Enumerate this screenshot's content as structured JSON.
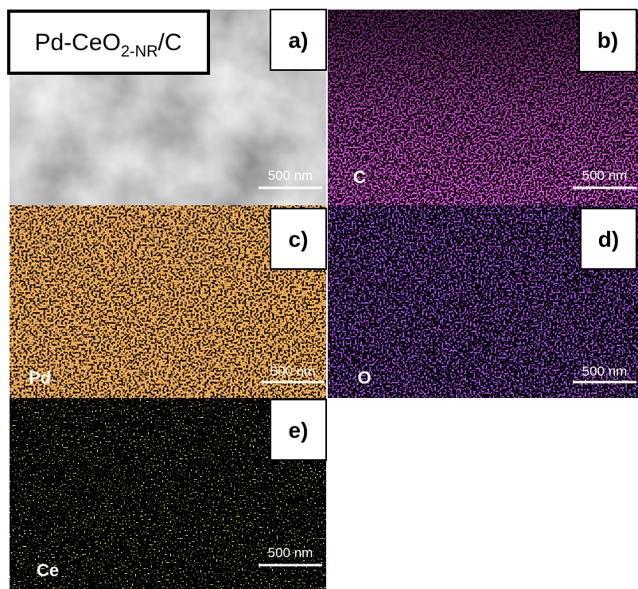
{
  "title": {
    "prefix": "Pd-CeO",
    "subscript": "2-NR",
    "suffix": "/C"
  },
  "panels": [
    {
      "label": "a)",
      "scale_bar": "500 nm"
    },
    {
      "label": "b)",
      "element": "C",
      "scale_bar": "500 nm"
    },
    {
      "label": "c)",
      "element": "Pd",
      "scale_bar": "500 nm"
    },
    {
      "label": "d)",
      "element": "O",
      "scale_bar": "500 nm"
    },
    {
      "label": "e)",
      "element": "Ce",
      "scale_bar": "500 nm"
    }
  ]
}
